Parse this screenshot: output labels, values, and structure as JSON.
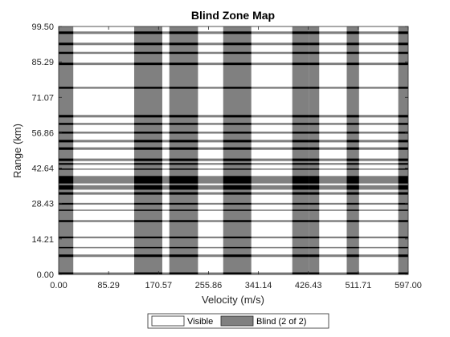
{
  "chart_data": {
    "type": "heatmap",
    "title": "Blind Zone Map",
    "xlabel": "Velocity (m/s)",
    "ylabel": "Range (km)",
    "xlim": [
      0,
      597
    ],
    "ylim": [
      0,
      99.5
    ],
    "x_tick_labels": [
      "0.00",
      "85.29",
      "170.57",
      "255.86",
      "341.14",
      "426.43",
      "511.71",
      "597.00"
    ],
    "y_tick_labels": [
      "0.00",
      "14.21",
      "28.43",
      "42.64",
      "56.86",
      "71.07",
      "85.29",
      "99.50"
    ],
    "grid": false,
    "legend_position": "bottom-center",
    "legend": [
      {
        "label": "Visible",
        "color": "#ffffff"
      },
      {
        "label": "Blind (2 of 2)",
        "color": "#808080"
      }
    ],
    "colors": {
      "visible": "#ffffff",
      "blind_partial": "#808080",
      "blind_full": "#000000"
    },
    "velocity_blind_bands": [
      [
        0,
        25
      ],
      [
        129,
        177
      ],
      [
        189,
        238
      ],
      [
        281,
        329
      ],
      [
        399,
        427
      ],
      [
        427,
        445
      ],
      [
        492,
        513
      ],
      [
        580,
        597
      ]
    ],
    "range_blind_bands": [
      [
        0,
        0.8
      ],
      [
        7,
        8
      ],
      [
        10.5,
        11
      ],
      [
        14.5,
        15.2
      ],
      [
        21,
        21.8
      ],
      [
        25.5,
        26
      ],
      [
        28,
        28.7
      ],
      [
        32,
        33
      ],
      [
        34,
        35.8
      ],
      [
        36.5,
        39.5
      ],
      [
        42,
        42.5
      ],
      [
        44,
        44.7
      ],
      [
        45.5,
        46.5
      ],
      [
        50,
        51
      ],
      [
        53,
        54
      ],
      [
        56.5,
        57.3
      ],
      [
        60,
        60.8
      ],
      [
        63,
        64
      ],
      [
        74.5,
        75.3
      ],
      [
        84,
        85
      ],
      [
        88.5,
        89.3
      ],
      [
        92,
        93
      ],
      [
        96.5,
        97.5
      ]
    ]
  }
}
